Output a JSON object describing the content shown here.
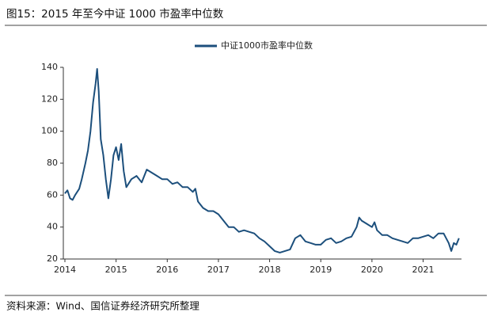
{
  "chart_data": {
    "type": "line",
    "title": "图15：2015 年至今中证 1000 市盈率中位数",
    "source": "资料来源：Wind、国信证券经济研究所整理",
    "x": [
      2014.0,
      2014.05,
      2014.1,
      2014.15,
      2014.2,
      2014.28,
      2014.33,
      2014.4,
      2014.45,
      2014.5,
      2014.55,
      2014.6,
      2014.63,
      2014.66,
      2014.7,
      2014.75,
      2014.8,
      2014.85,
      2014.9,
      2014.95,
      2015.0,
      2015.05,
      2015.1,
      2015.15,
      2015.2,
      2015.3,
      2015.4,
      2015.5,
      2015.6,
      2015.7,
      2015.8,
      2015.9,
      2016.0,
      2016.1,
      2016.2,
      2016.3,
      2016.4,
      2016.5,
      2016.55,
      2016.6,
      2016.7,
      2016.8,
      2016.9,
      2017.0,
      2017.1,
      2017.2,
      2017.3,
      2017.4,
      2017.5,
      2017.6,
      2017.7,
      2017.8,
      2017.9,
      2018.0,
      2018.1,
      2018.2,
      2018.3,
      2018.4,
      2018.5,
      2018.6,
      2018.7,
      2018.8,
      2018.9,
      2019.0,
      2019.1,
      2019.2,
      2019.3,
      2019.4,
      2019.5,
      2019.6,
      2019.7,
      2019.75,
      2019.8,
      2019.9,
      2020.0,
      2020.05,
      2020.1,
      2020.2,
      2020.3,
      2020.4,
      2020.5,
      2020.6,
      2020.7,
      2020.8,
      2020.9,
      2021.0,
      2021.1,
      2021.2,
      2021.3,
      2021.4,
      2021.5,
      2021.55,
      2021.6,
      2021.65,
      2021.7
    ],
    "series": [
      {
        "name": "中证1000市盈率中位数",
        "color": "#1c4f7c",
        "values": [
          61,
          63,
          58,
          57,
          60,
          64,
          70,
          80,
          88,
          100,
          118,
          130,
          139,
          125,
          95,
          85,
          70,
          58,
          70,
          85,
          90,
          82,
          92,
          75,
          65,
          70,
          72,
          68,
          76,
          74,
          72,
          70,
          70,
          67,
          68,
          65,
          65,
          62,
          64,
          56,
          52,
          50,
          50,
          48,
          44,
          40,
          40,
          37,
          38,
          37,
          36,
          33,
          31,
          28,
          25,
          24,
          25,
          26,
          33,
          35,
          31,
          30,
          29,
          29,
          32,
          33,
          30,
          31,
          33,
          34,
          40,
          46,
          44,
          42,
          40,
          43,
          38,
          35,
          35,
          33,
          32,
          31,
          30,
          33,
          33,
          34,
          35,
          33,
          36,
          36,
          30,
          25,
          30,
          29,
          33
        ]
      }
    ],
    "xlim": [
      2014,
      2021.75
    ],
    "xticks": [
      2014,
      2015,
      2016,
      2017,
      2018,
      2019,
      2020,
      2021
    ],
    "ylim": [
      20,
      140
    ],
    "yticks": [
      20,
      40,
      60,
      80,
      100,
      120,
      140
    ],
    "legend": "top"
  }
}
